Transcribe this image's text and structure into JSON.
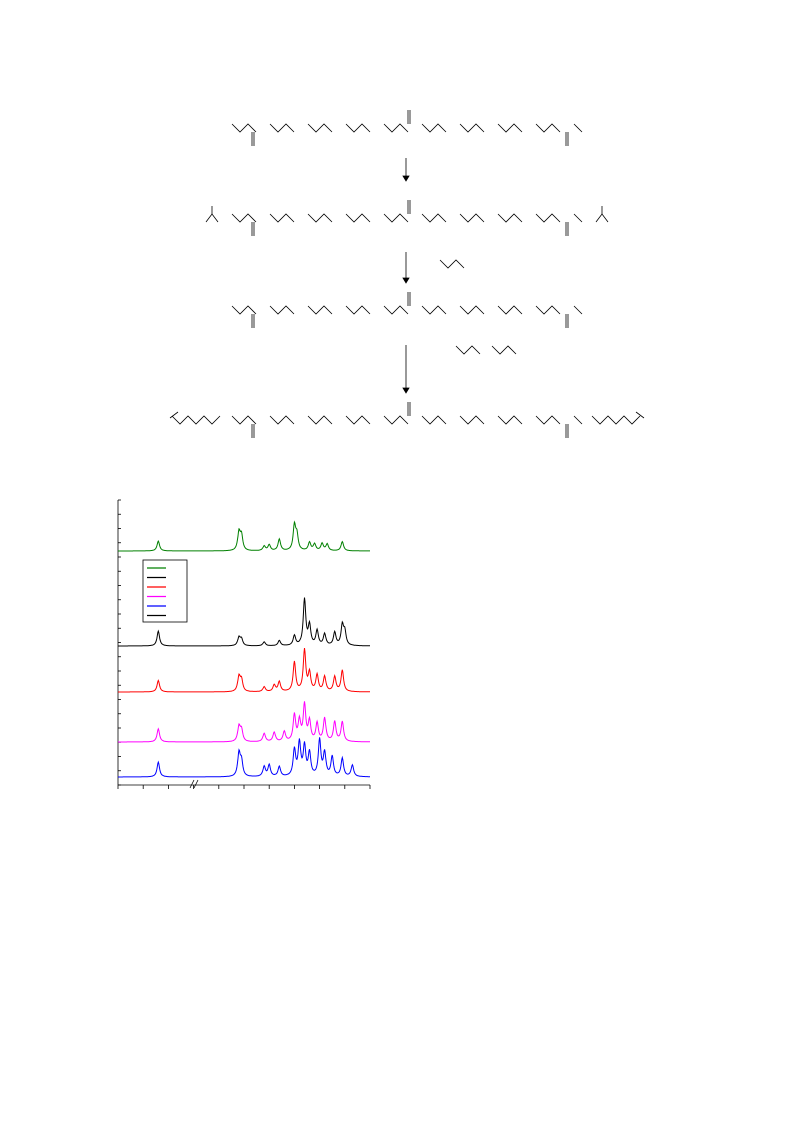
{
  "page": {
    "background": "#ffffff"
  },
  "scheme": {
    "description_visible_text": "",
    "arrows": 3,
    "stroke_color": "#000000"
  },
  "figure": {
    "legend": {
      "entries": [
        {
          "color": "#008000",
          "label": ""
        },
        {
          "color": "#000000",
          "label": ""
        },
        {
          "color": "#ff0000",
          "label": ""
        },
        {
          "color": "#ff00ff",
          "label": ""
        },
        {
          "color": "#0000ff",
          "label": ""
        },
        {
          "color": "#000000",
          "label": ""
        }
      ]
    },
    "axis_break": true
  },
  "chart_data": {
    "type": "line",
    "title": "",
    "xlabel": "",
    "ylabel": "",
    "grid": false,
    "legend_placement": "upper-left",
    "series": [
      {
        "color": "#008000",
        "peaks": [
          {
            "x": 0.16,
            "h": 0.3
          },
          {
            "x": 0.48,
            "h": 0.55
          },
          {
            "x": 0.49,
            "h": 0.45
          },
          {
            "x": 0.58,
            "h": 0.14
          },
          {
            "x": 0.6,
            "h": 0.18
          },
          {
            "x": 0.64,
            "h": 0.35
          },
          {
            "x": 0.7,
            "h": 0.75
          },
          {
            "x": 0.71,
            "h": 0.45
          },
          {
            "x": 0.76,
            "h": 0.25
          },
          {
            "x": 0.78,
            "h": 0.2
          },
          {
            "x": 0.81,
            "h": 0.22
          },
          {
            "x": 0.83,
            "h": 0.2
          },
          {
            "x": 0.89,
            "h": 0.28
          }
        ]
      },
      {
        "color": "#000000",
        "peaks": [
          {
            "x": 0.16,
            "h": 0.45
          },
          {
            "x": 0.48,
            "h": 0.25
          },
          {
            "x": 0.49,
            "h": 0.2
          },
          {
            "x": 0.58,
            "h": 0.12
          },
          {
            "x": 0.64,
            "h": 0.16
          },
          {
            "x": 0.7,
            "h": 0.3
          },
          {
            "x": 0.74,
            "h": 1.4
          },
          {
            "x": 0.76,
            "h": 0.6
          },
          {
            "x": 0.79,
            "h": 0.45
          },
          {
            "x": 0.82,
            "h": 0.35
          },
          {
            "x": 0.86,
            "h": 0.4
          },
          {
            "x": 0.89,
            "h": 0.6
          },
          {
            "x": 0.9,
            "h": 0.4
          }
        ]
      },
      {
        "color": "#ff0000",
        "peaks": [
          {
            "x": 0.16,
            "h": 0.35
          },
          {
            "x": 0.48,
            "h": 0.45
          },
          {
            "x": 0.49,
            "h": 0.35
          },
          {
            "x": 0.58,
            "h": 0.15
          },
          {
            "x": 0.62,
            "h": 0.2
          },
          {
            "x": 0.64,
            "h": 0.3
          },
          {
            "x": 0.7,
            "h": 0.9
          },
          {
            "x": 0.74,
            "h": 1.25
          },
          {
            "x": 0.76,
            "h": 0.55
          },
          {
            "x": 0.79,
            "h": 0.5
          },
          {
            "x": 0.82,
            "h": 0.45
          },
          {
            "x": 0.86,
            "h": 0.45
          },
          {
            "x": 0.89,
            "h": 0.65
          }
        ]
      },
      {
        "color": "#ff00ff",
        "peaks": [
          {
            "x": 0.16,
            "h": 0.4
          },
          {
            "x": 0.48,
            "h": 0.45
          },
          {
            "x": 0.49,
            "h": 0.35
          },
          {
            "x": 0.58,
            "h": 0.25
          },
          {
            "x": 0.62,
            "h": 0.28
          },
          {
            "x": 0.66,
            "h": 0.3
          },
          {
            "x": 0.7,
            "h": 0.8
          },
          {
            "x": 0.72,
            "h": 0.6
          },
          {
            "x": 0.74,
            "h": 1.1
          },
          {
            "x": 0.76,
            "h": 0.6
          },
          {
            "x": 0.79,
            "h": 0.55
          },
          {
            "x": 0.82,
            "h": 0.7
          },
          {
            "x": 0.86,
            "h": 0.6
          },
          {
            "x": 0.89,
            "h": 0.6
          }
        ]
      },
      {
        "color": "#0000ff",
        "peaks": [
          {
            "x": 0.16,
            "h": 0.45
          },
          {
            "x": 0.48,
            "h": 0.7
          },
          {
            "x": 0.49,
            "h": 0.45
          },
          {
            "x": 0.58,
            "h": 0.3
          },
          {
            "x": 0.6,
            "h": 0.35
          },
          {
            "x": 0.64,
            "h": 0.3
          },
          {
            "x": 0.7,
            "h": 0.8
          },
          {
            "x": 0.72,
            "h": 1.0
          },
          {
            "x": 0.74,
            "h": 0.9
          },
          {
            "x": 0.76,
            "h": 0.7
          },
          {
            "x": 0.8,
            "h": 1.1
          },
          {
            "x": 0.82,
            "h": 0.7
          },
          {
            "x": 0.85,
            "h": 0.6
          },
          {
            "x": 0.89,
            "h": 0.55
          },
          {
            "x": 0.93,
            "h": 0.35
          }
        ]
      }
    ]
  }
}
